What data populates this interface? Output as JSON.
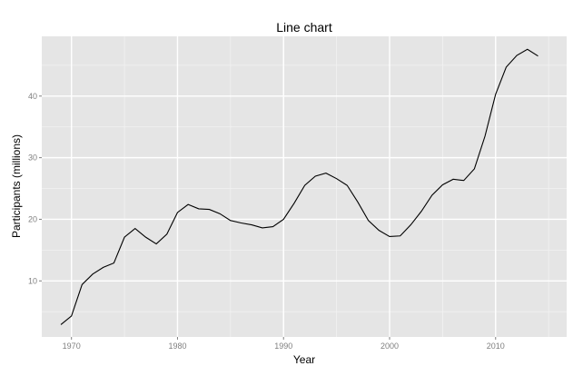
{
  "chart_data": {
    "type": "line",
    "title": "Line chart",
    "xlabel": "Year",
    "ylabel": "Participants (millions)",
    "xlim": [
      1967.2,
      2016.7
    ],
    "ylim": [
      0.9,
      49.7
    ],
    "x_ticks": [
      1970,
      1980,
      1990,
      2000,
      2010
    ],
    "y_ticks": [
      10,
      20,
      30,
      40
    ],
    "grid": true,
    "legend": "none",
    "colors": {
      "panel": "#e5e5e5",
      "grid_major": "#ffffff",
      "grid_minor": "#f2f2f2",
      "line": "#000000",
      "tick_label": "#7f7f7f"
    },
    "series": [
      {
        "x": [
          1969,
          1970,
          1971,
          1972,
          1973,
          1974,
          1975,
          1976,
          1977,
          1978,
          1979,
          1980,
          1981,
          1982,
          1983,
          1984,
          1985,
          1986,
          1987,
          1988,
          1989,
          1990,
          1991,
          1992,
          1993,
          1994,
          1995,
          1996,
          1997,
          1998,
          1999,
          2000,
          2001,
          2002,
          2003,
          2004,
          2005,
          2006,
          2007,
          2008,
          2009,
          2010,
          2011,
          2012,
          2013,
          2014
        ],
        "values": [
          2.9,
          4.3,
          9.4,
          11.1,
          12.2,
          12.9,
          17.1,
          18.5,
          17.1,
          16.0,
          17.6,
          21.1,
          22.4,
          21.7,
          21.6,
          20.9,
          19.8,
          19.4,
          19.1,
          18.6,
          18.8,
          20.0,
          22.6,
          25.5,
          27.0,
          27.5,
          26.6,
          25.5,
          22.8,
          19.8,
          18.2,
          17.2,
          17.3,
          19.1,
          21.3,
          23.9,
          25.6,
          26.5,
          26.3,
          28.2,
          33.5,
          40.3,
          44.7,
          46.6,
          47.6,
          46.5
        ]
      }
    ]
  }
}
